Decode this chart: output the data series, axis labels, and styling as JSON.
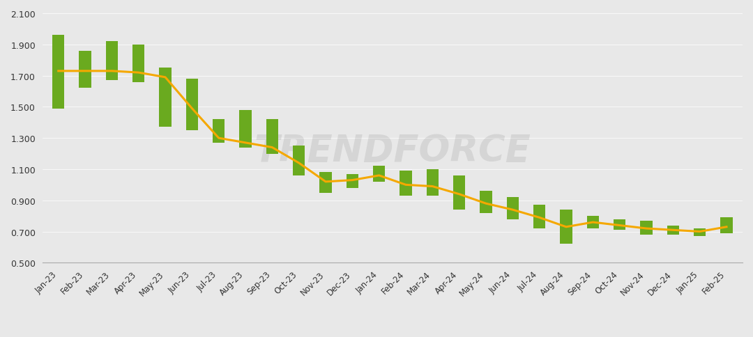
{
  "categories": [
    "Jan-23",
    "Feb-23",
    "Mar-23",
    "Apr-23",
    "May-23",
    "Jun-23",
    "Jul-23",
    "Aug-23",
    "Sep-23",
    "Oct-23",
    "Nov-23",
    "Dec-23",
    "Jan-24",
    "Feb-24",
    "Mar-24",
    "Apr-24",
    "May-24",
    "Jun-24",
    "Jul-24",
    "Aug-24",
    "Sep-24",
    "Oct-24",
    "Nov-24",
    "Dec-24",
    "Jan-25",
    "Feb-25"
  ],
  "high_price": [
    1.96,
    1.86,
    1.92,
    1.9,
    1.75,
    1.68,
    1.42,
    1.48,
    1.42,
    1.25,
    1.08,
    1.07,
    1.12,
    1.09,
    1.1,
    1.06,
    0.96,
    0.92,
    0.87,
    0.84,
    0.8,
    0.78,
    0.77,
    0.74,
    0.72,
    0.79
  ],
  "low_price": [
    1.49,
    1.62,
    1.67,
    1.66,
    1.37,
    1.35,
    1.27,
    1.24,
    1.2,
    1.06,
    0.95,
    0.98,
    1.02,
    0.93,
    0.93,
    0.84,
    0.82,
    0.78,
    0.72,
    0.62,
    0.72,
    0.71,
    0.68,
    0.68,
    0.67,
    0.69
  ],
  "avg_price": [
    1.73,
    1.73,
    1.73,
    1.72,
    1.69,
    1.49,
    1.3,
    1.27,
    1.24,
    1.14,
    1.02,
    1.03,
    1.06,
    1.0,
    0.99,
    0.94,
    0.88,
    0.84,
    0.79,
    0.73,
    0.76,
    0.74,
    0.72,
    0.71,
    0.7,
    0.73
  ],
  "bar_color": "#6aaa1f",
  "line_color": "#f5a800",
  "bg_color": "#e8e8e8",
  "ylim": [
    0.5,
    2.1
  ],
  "yticks": [
    0.5,
    0.7,
    0.9,
    1.1,
    1.3,
    1.5,
    1.7,
    1.9,
    2.1
  ],
  "bar_width": 0.45
}
